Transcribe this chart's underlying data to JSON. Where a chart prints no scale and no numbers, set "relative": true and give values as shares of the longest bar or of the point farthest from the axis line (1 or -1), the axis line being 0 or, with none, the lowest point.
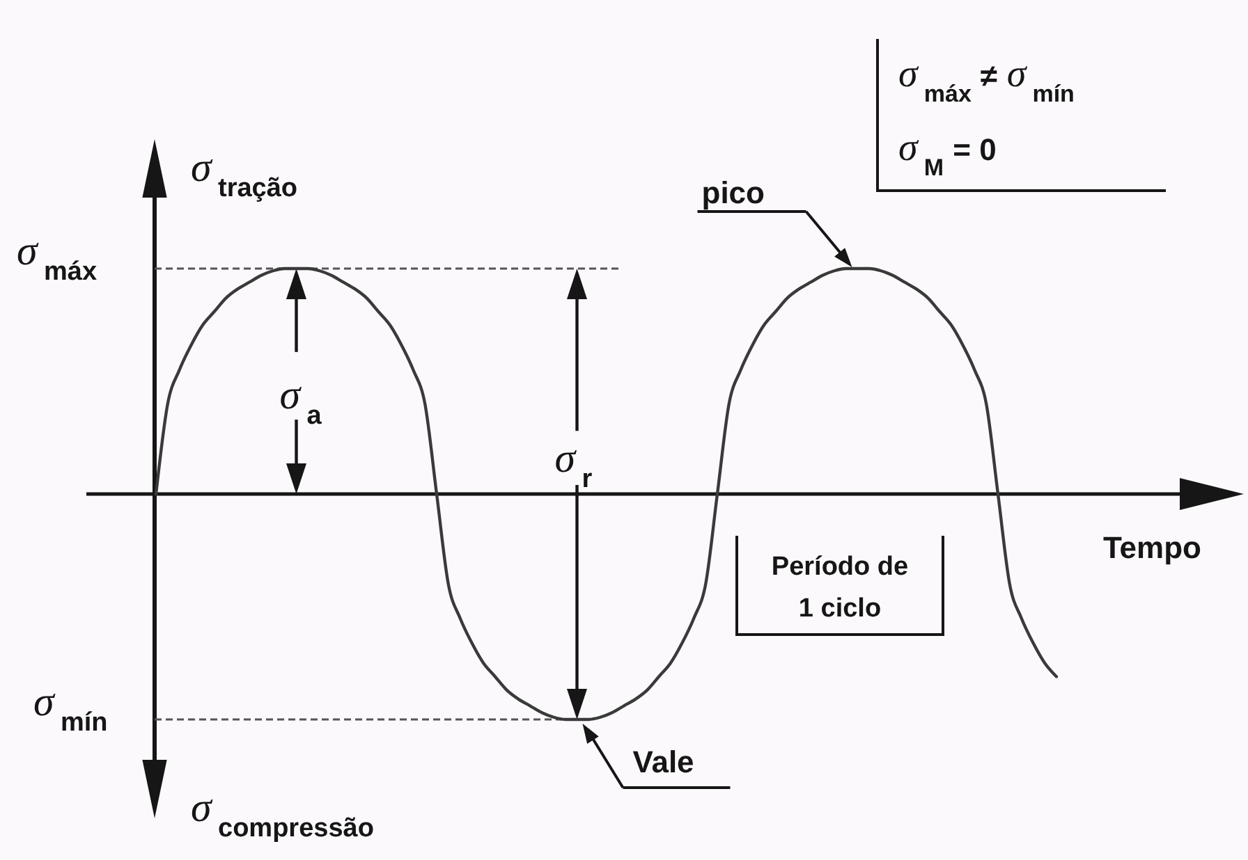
{
  "chart_data": {
    "type": "line",
    "relative": true,
    "xlabel": "Tempo",
    "ylabel": "σ$_{tração}$",
    "categories": [
      null,
      null,
      null,
      null,
      null,
      null,
      null,
      null,
      null,
      null,
      null,
      null,
      null,
      null,
      null,
      null,
      null,
      null,
      null,
      null,
      null,
      null,
      null,
      null,
      null,
      null,
      null,
      null,
      null,
      null,
      null,
      null,
      null,
      null,
      null,
      null,
      null,
      null,
      null,
      null,
      null,
      null,
      null,
      null,
      null,
      null,
      null,
      null,
      null,
      null,
      null,
      null,
      null,
      null,
      null,
      null,
      null,
      null,
      null,
      null,
      null,
      null,
      null,
      null,
      null,
      null,
      null,
      null,
      null,
      null,
      null,
      null,
      null,
      null,
      null,
      null,
      null,
      null
    ],
    "series": [
      {
        "color": "#3a3a3a",
        "values": [
          0,
          0.4,
          0.55,
          0.66,
          0.75,
          0.81,
          0.87,
          0.91,
          0.94,
          0.97,
          0.99,
          1,
          1,
          1,
          0.99,
          0.97,
          0.94,
          0.91,
          0.87,
          0.81,
          0.75,
          0.66,
          0.55,
          0.4,
          0,
          -0.4,
          -0.55,
          -0.66,
          -0.75,
          -0.81,
          -0.87,
          -0.91,
          -0.94,
          -0.97,
          -0.99,
          -1,
          -1,
          -1,
          -0.99,
          -0.97,
          -0.94,
          -0.91,
          -0.87,
          -0.81,
          -0.75,
          -0.66,
          -0.55,
          -0.4,
          0,
          0.4,
          0.55,
          0.66,
          0.75,
          0.81,
          0.87,
          0.91,
          0.94,
          0.97,
          0.99,
          1,
          1,
          1,
          0.99,
          0.97,
          0.94,
          0.91,
          0.87,
          0.81,
          0.75,
          0.66,
          0.55,
          0.4,
          0,
          -0.4,
          -0.55,
          -0.66,
          -0.75,
          -0.81
        ]
      }
    ],
    "ref_lines": [
      {
        "axis": "y",
        "value": 1,
        "label": "σ$_{máx}$",
        "color": "#555555",
        "line_style": "dashed"
      },
      {
        "axis": "y",
        "value": -1,
        "label": "σ$_{mín}$",
        "color": "#555555",
        "line_style": "dashed"
      }
    ],
    "annotations": [
      "σ$_{a}$",
      "σ$_{r}$",
      "pico",
      "Vale",
      "Período de 1 ciclo",
      "σ$_{compressão}$",
      "σ$_{máx}$ ≠ σ$_{mín}$",
      "σ$_{M}$ = 0"
    ]
  }
}
